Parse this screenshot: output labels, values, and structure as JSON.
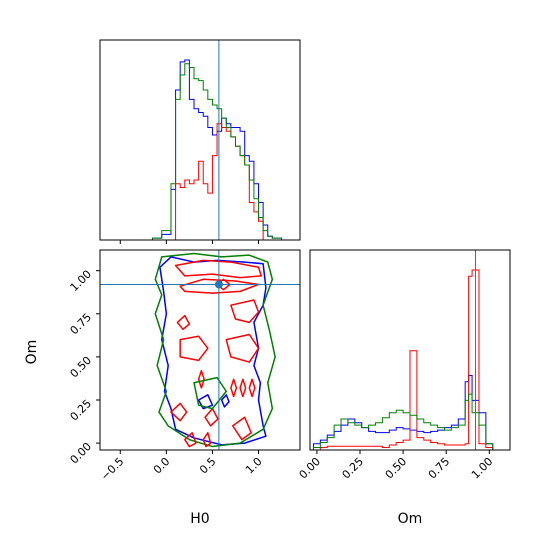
{
  "chart_data": {
    "type": "corner",
    "parameters": [
      "H0",
      "Om"
    ],
    "truth": {
      "H0": 0.57,
      "Om": 0.92,
      "color": "#1f77b4"
    },
    "series_colors": [
      "#0000ff",
      "#ff0000",
      "#008000"
    ],
    "axes": {
      "H0": {
        "label": "H0",
        "range": [
          -0.72,
          1.45
        ],
        "ticks": [
          -0.5,
          0.0,
          0.5,
          1.0
        ],
        "tick_labels": [
          "−0.5",
          "0.0",
          "0.5",
          "1.0"
        ]
      },
      "Om": {
        "label": "Om",
        "range": [
          -0.04,
          1.12
        ],
        "ticks": [
          0.0,
          0.25,
          0.5,
          0.75,
          1.0
        ],
        "tick_labels": [
          "0.00",
          "0.25",
          "0.50",
          "0.75",
          "1.00"
        ]
      }
    },
    "hist_H0": {
      "bin_edges": [
        -0.25,
        -0.15,
        -0.05,
        0.05,
        0.1,
        0.15,
        0.2,
        0.25,
        0.3,
        0.35,
        0.4,
        0.45,
        0.5,
        0.55,
        0.6,
        0.65,
        0.7,
        0.75,
        0.8,
        0.85,
        0.9,
        0.95,
        1.0,
        1.05,
        1.1,
        1.15,
        1.25,
        1.4
      ],
      "series": [
        {
          "color": "#0000ff",
          "values": [
            0,
            1,
            3,
            27,
            80,
            95,
            96,
            75,
            70,
            68,
            66,
            60,
            56,
            58,
            65,
            62,
            60,
            60,
            58,
            45,
            42,
            30,
            20,
            8,
            2,
            1,
            0
          ]
        },
        {
          "color": "#ff0000",
          "values": [
            0,
            0,
            0,
            0,
            30,
            28,
            32,
            30,
            32,
            42,
            30,
            25,
            45,
            62,
            60,
            58,
            55,
            50,
            45,
            40,
            20,
            15,
            10,
            0,
            0,
            0,
            0
          ]
        },
        {
          "color": "#008000",
          "values": [
            0,
            1,
            5,
            30,
            75,
            88,
            94,
            92,
            86,
            85,
            80,
            75,
            72,
            70,
            65,
            60,
            55,
            50,
            45,
            40,
            32,
            22,
            12,
            5,
            2,
            1,
            0
          ]
        }
      ]
    },
    "hist_Om": {
      "bin_edges": [
        -0.02,
        0.02,
        0.06,
        0.1,
        0.14,
        0.18,
        0.22,
        0.26,
        0.3,
        0.34,
        0.38,
        0.42,
        0.46,
        0.5,
        0.54,
        0.58,
        0.62,
        0.66,
        0.7,
        0.74,
        0.78,
        0.82,
        0.86,
        0.88,
        0.9,
        0.94,
        0.98,
        1.02,
        1.06
      ],
      "series": [
        {
          "color": "#0000ff",
          "values": [
            5,
            8,
            12,
            15,
            20,
            25,
            22,
            18,
            15,
            14,
            14,
            16,
            18,
            17,
            16,
            15,
            14,
            15,
            16,
            18,
            20,
            25,
            55,
            60,
            40,
            30,
            5,
            0
          ]
        },
        {
          "color": "#ff0000",
          "values": [
            0,
            2,
            3,
            3,
            3,
            3,
            3,
            3,
            3,
            3,
            2,
            4,
            6,
            8,
            80,
            10,
            8,
            6,
            5,
            4,
            4,
            4,
            5,
            140,
            145,
            5,
            2,
            0
          ]
        },
        {
          "color": "#008000",
          "values": [
            2,
            6,
            10,
            20,
            25,
            22,
            20,
            18,
            20,
            22,
            26,
            30,
            32,
            30,
            28,
            25,
            22,
            20,
            18,
            16,
            18,
            20,
            40,
            45,
            30,
            20,
            5,
            0
          ]
        }
      ]
    },
    "contours": [
      {
        "color": "#0000ff",
        "points": [
          [
            -0.07,
            1.02
          ],
          [
            0.05,
            1.08
          ],
          [
            0.3,
            1.05
          ],
          [
            0.55,
            1.06
          ],
          [
            0.85,
            1.05
          ],
          [
            1.05,
            1.04
          ],
          [
            1.08,
            0.9
          ],
          [
            1.05,
            0.8
          ],
          [
            0.95,
            0.7
          ],
          [
            1.0,
            0.55
          ],
          [
            0.95,
            0.45
          ],
          [
            1.02,
            0.35
          ],
          [
            1.0,
            0.25
          ],
          [
            1.05,
            0.1
          ],
          [
            1.08,
            0.04
          ],
          [
            0.85,
            0.0
          ],
          [
            0.6,
            -0.01
          ],
          [
            0.3,
            0.03
          ],
          [
            0.1,
            0.08
          ],
          [
            0.05,
            0.2
          ],
          [
            -0.02,
            0.3
          ],
          [
            0.02,
            0.45
          ],
          [
            -0.05,
            0.6
          ],
          [
            0.0,
            0.75
          ],
          [
            -0.03,
            0.88
          ],
          [
            -0.07,
            1.02
          ]
        ]
      },
      {
        "color": "#008000",
        "points": [
          [
            -0.12,
            0.95
          ],
          [
            -0.05,
            1.08
          ],
          [
            0.3,
            1.1
          ],
          [
            0.6,
            1.08
          ],
          [
            0.9,
            1.09
          ],
          [
            1.1,
            1.05
          ],
          [
            1.15,
            0.95
          ],
          [
            1.05,
            0.8
          ],
          [
            1.12,
            0.65
          ],
          [
            1.18,
            0.5
          ],
          [
            1.1,
            0.35
          ],
          [
            1.15,
            0.2
          ],
          [
            1.05,
            0.08
          ],
          [
            0.8,
            0.0
          ],
          [
            0.5,
            -0.02
          ],
          [
            0.25,
            0.02
          ],
          [
            0.02,
            0.1
          ],
          [
            -0.08,
            0.18
          ],
          [
            0.0,
            0.3
          ],
          [
            -0.1,
            0.45
          ],
          [
            -0.03,
            0.6
          ],
          [
            -0.12,
            0.75
          ],
          [
            -0.05,
            0.86
          ],
          [
            -0.12,
            0.95
          ]
        ]
      },
      {
        "color": "#ff0000",
        "points": [
          [
            0.1,
            1.03
          ],
          [
            0.4,
            1.06
          ],
          [
            0.7,
            1.05
          ],
          [
            1.0,
            1.02
          ],
          [
            1.03,
            0.97
          ],
          [
            0.8,
            0.96
          ],
          [
            0.5,
            0.98
          ],
          [
            0.2,
            0.97
          ],
          [
            0.1,
            1.03
          ]
        ]
      },
      {
        "color": "#ff0000",
        "points": [
          [
            0.15,
            0.91
          ],
          [
            0.4,
            0.95
          ],
          [
            0.75,
            0.94
          ],
          [
            1.0,
            0.92
          ],
          [
            0.8,
            0.88
          ],
          [
            0.5,
            0.87
          ],
          [
            0.2,
            0.88
          ],
          [
            0.15,
            0.91
          ]
        ]
      },
      {
        "color": "#ff0000",
        "points": [
          [
            0.55,
            0.92
          ],
          [
            0.62,
            0.95
          ],
          [
            0.69,
            0.92
          ],
          [
            0.62,
            0.89
          ],
          [
            0.55,
            0.92
          ]
        ]
      },
      {
        "color": "#ff0000",
        "points": [
          [
            0.7,
            0.8
          ],
          [
            0.95,
            0.83
          ],
          [
            1.0,
            0.76
          ],
          [
            0.9,
            0.7
          ],
          [
            0.75,
            0.72
          ],
          [
            0.7,
            0.8
          ]
        ]
      },
      {
        "color": "#ff0000",
        "points": [
          [
            0.15,
            0.6
          ],
          [
            0.35,
            0.62
          ],
          [
            0.45,
            0.55
          ],
          [
            0.35,
            0.48
          ],
          [
            0.15,
            0.5
          ],
          [
            0.15,
            0.6
          ]
        ]
      },
      {
        "color": "#ff0000",
        "points": [
          [
            0.65,
            0.6
          ],
          [
            0.9,
            0.63
          ],
          [
            1.0,
            0.55
          ],
          [
            0.9,
            0.47
          ],
          [
            0.7,
            0.5
          ],
          [
            0.65,
            0.6
          ]
        ]
      },
      {
        "color": "#ff0000",
        "points": [
          [
            0.12,
            0.7
          ],
          [
            0.2,
            0.74
          ],
          [
            0.25,
            0.69
          ],
          [
            0.18,
            0.66
          ],
          [
            0.12,
            0.7
          ]
        ]
      },
      {
        "color": "#ff0000",
        "points": [
          [
            0.35,
            0.37
          ],
          [
            0.38,
            0.42
          ],
          [
            0.41,
            0.37
          ],
          [
            0.38,
            0.32
          ],
          [
            0.35,
            0.37
          ]
        ]
      },
      {
        "color": "#ff0000",
        "points": [
          [
            0.7,
            0.32
          ],
          [
            0.73,
            0.37
          ],
          [
            0.76,
            0.32
          ],
          [
            0.73,
            0.27
          ],
          [
            0.7,
            0.32
          ]
        ]
      },
      {
        "color": "#ff0000",
        "points": [
          [
            0.8,
            0.32
          ],
          [
            0.83,
            0.37
          ],
          [
            0.86,
            0.32
          ],
          [
            0.83,
            0.27
          ],
          [
            0.8,
            0.32
          ]
        ]
      },
      {
        "color": "#ff0000",
        "points": [
          [
            0.9,
            0.32
          ],
          [
            0.93,
            0.37
          ],
          [
            0.96,
            0.32
          ],
          [
            0.93,
            0.27
          ],
          [
            0.9,
            0.32
          ]
        ]
      },
      {
        "color": "#ff0000",
        "points": [
          [
            0.05,
            0.18
          ],
          [
            0.15,
            0.23
          ],
          [
            0.22,
            0.18
          ],
          [
            0.15,
            0.13
          ],
          [
            0.05,
            0.18
          ]
        ]
      },
      {
        "color": "#ff0000",
        "points": [
          [
            0.42,
            0.15
          ],
          [
            0.5,
            0.2
          ],
          [
            0.56,
            0.14
          ],
          [
            0.48,
            0.1
          ],
          [
            0.42,
            0.15
          ]
        ]
      },
      {
        "color": "#ff0000",
        "points": [
          [
            0.72,
            0.1
          ],
          [
            0.85,
            0.15
          ],
          [
            0.92,
            0.06
          ],
          [
            0.82,
            0.02
          ],
          [
            0.72,
            0.1
          ]
        ]
      },
      {
        "color": "#ff0000",
        "points": [
          [
            0.2,
            0.02
          ],
          [
            0.28,
            0.06
          ],
          [
            0.32,
            0.0
          ],
          [
            0.25,
            -0.02
          ],
          [
            0.2,
            0.02
          ]
        ]
      },
      {
        "color": "#ff0000",
        "points": [
          [
            0.4,
            0.02
          ],
          [
            0.45,
            0.06
          ],
          [
            0.48,
            0.0
          ],
          [
            0.43,
            -0.02
          ],
          [
            0.4,
            0.02
          ]
        ]
      },
      {
        "color": "#0000ff",
        "points": [
          [
            0.35,
            0.25
          ],
          [
            0.45,
            0.28
          ],
          [
            0.5,
            0.22
          ],
          [
            0.4,
            0.2
          ],
          [
            0.35,
            0.25
          ]
        ]
      },
      {
        "color": "#0000ff",
        "points": [
          [
            0.6,
            0.25
          ],
          [
            0.65,
            0.28
          ],
          [
            0.68,
            0.24
          ],
          [
            0.63,
            0.21
          ],
          [
            0.6,
            0.25
          ]
        ]
      },
      {
        "color": "#008000",
        "points": [
          [
            0.3,
            0.35
          ],
          [
            0.55,
            0.38
          ],
          [
            0.65,
            0.3
          ],
          [
            0.5,
            0.2
          ],
          [
            0.35,
            0.22
          ],
          [
            0.3,
            0.35
          ]
        ]
      }
    ]
  }
}
